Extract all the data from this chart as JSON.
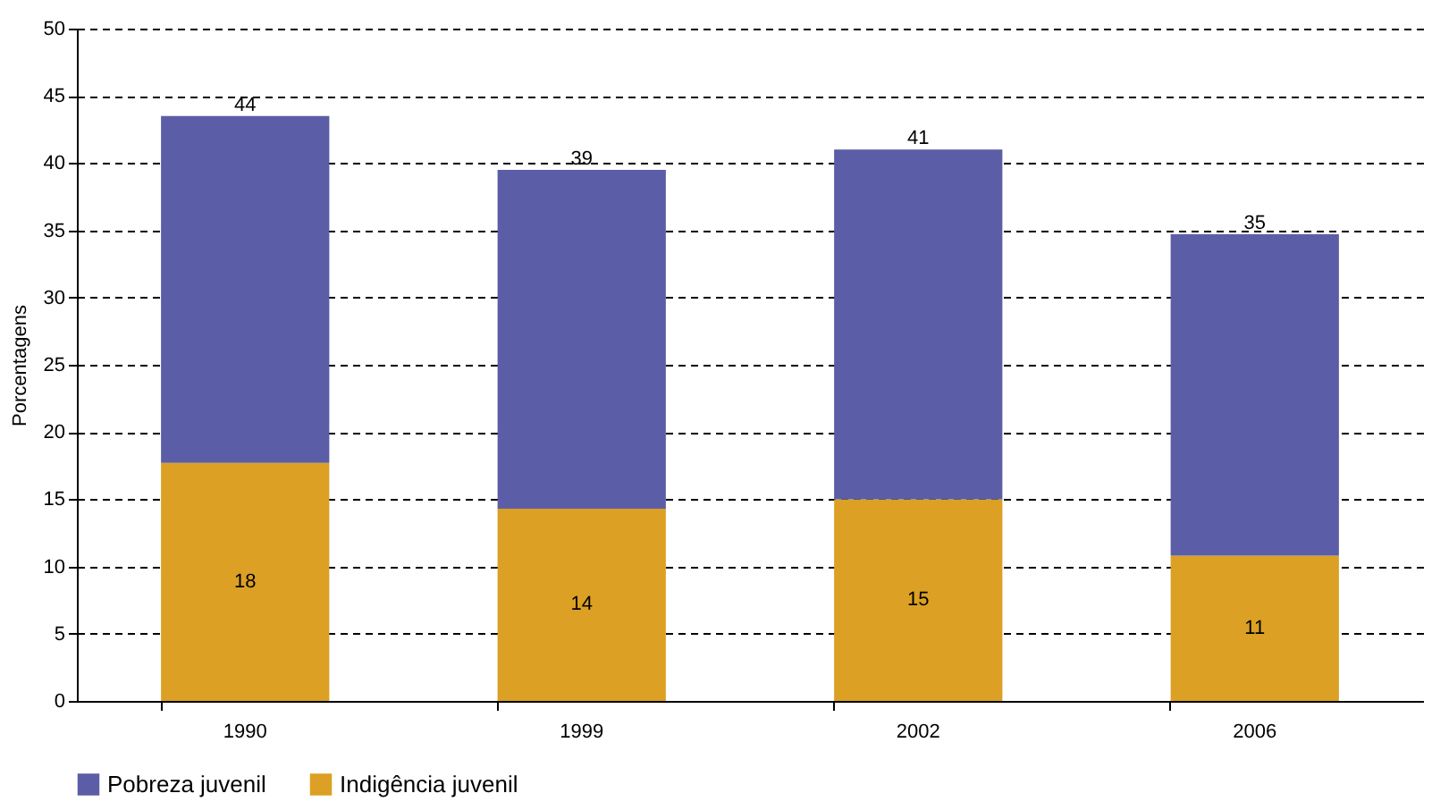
{
  "chart_data": {
    "type": "bar",
    "stacked": true,
    "ylabel": "Porcentagens",
    "categories": [
      "1990",
      "1999",
      "2002",
      "2006"
    ],
    "series": [
      {
        "name": "Indigência juvenil",
        "color": "#dba024",
        "values": [
          17.7,
          14.3,
          15.0,
          10.8
        ],
        "value_labels": [
          "18",
          "14",
          "15",
          "11"
        ]
      },
      {
        "name": "Pobreza juvenil",
        "color": "#5b5ea6",
        "values": [
          25.8,
          25.2,
          26.0,
          23.9
        ]
      }
    ],
    "totals": [
      "44",
      "39",
      "41",
      "35"
    ],
    "ylim": [
      0,
      50
    ],
    "yticks": [
      0,
      5,
      10,
      15,
      20,
      25,
      30,
      35,
      40,
      45,
      50
    ],
    "grid": "y",
    "legend": "bottom"
  }
}
